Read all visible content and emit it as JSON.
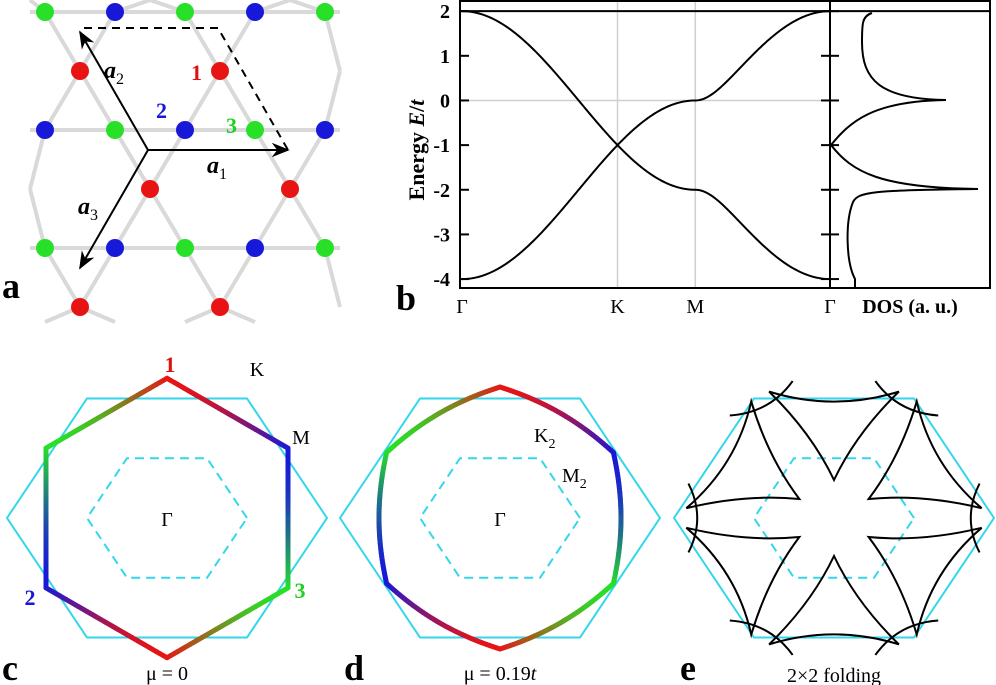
{
  "panel_a": {
    "label": "a",
    "site_labels": [
      "1",
      "2",
      "3"
    ],
    "vectors": [
      {
        "name": "a",
        "index": "1"
      },
      {
        "name": "a",
        "index": "2"
      },
      {
        "name": "a",
        "index": "3"
      }
    ]
  },
  "panel_b": {
    "label": "b",
    "y_label": [
      "Energy ",
      "E",
      "/",
      "t"
    ],
    "x_labels": [
      "Γ",
      "K",
      "M",
      "Γ"
    ],
    "ylim": [
      -4.2,
      2.25
    ],
    "yticks": [
      -4,
      -3,
      -2,
      -1,
      0,
      1,
      2
    ],
    "dos_label": "DOS (a. u.)"
  },
  "panel_c": {
    "label": "c",
    "corner_labels": [
      "1",
      "2",
      "3"
    ],
    "points": [
      "Γ",
      "K",
      "M"
    ],
    "caption": "μ = 0"
  },
  "panel_d": {
    "label": "d",
    "points": [
      "Γ",
      {
        "name": "K",
        "index": "2"
      },
      {
        "name": "M",
        "index": "2"
      }
    ],
    "caption": [
      "μ = 0.19",
      "t"
    ]
  },
  "panel_e": {
    "label": "e",
    "caption": "2×2 folding"
  }
}
